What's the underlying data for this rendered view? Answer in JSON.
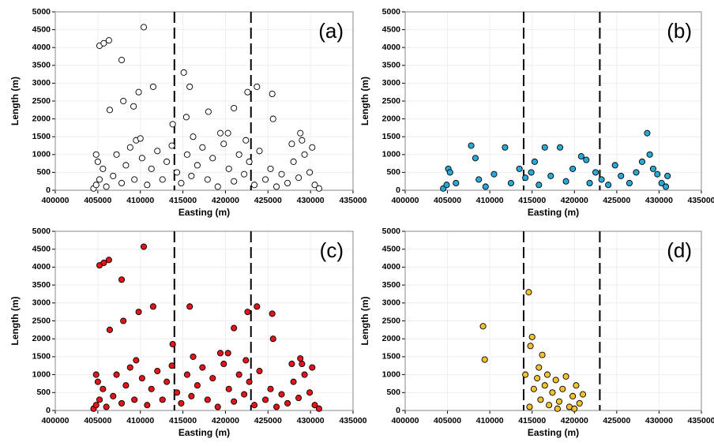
{
  "chart_data": [
    {
      "type": "scatter",
      "panel_label": "(a)",
      "xlabel": "Easting (m)",
      "ylabel": "Length (m)",
      "color": "#ffffff",
      "grid": true,
      "xlim": [
        400000,
        435000
      ],
      "ylim": [
        0,
        5000
      ],
      "xticks": [
        400000,
        405000,
        410000,
        415000,
        420000,
        425000,
        430000,
        435000
      ],
      "yticks": [
        0,
        500,
        1000,
        1500,
        2000,
        2500,
        3000,
        3500,
        4000,
        4500,
        5000
      ],
      "vlines": [
        414000,
        423000
      ],
      "x": [
        405200,
        405700,
        406300,
        410400,
        407800,
        415100,
        411500,
        415800,
        423700,
        422600,
        425500,
        406400,
        408000,
        409200,
        409800,
        418000,
        421000,
        425600,
        415400,
        413800,
        404800,
        409500,
        410000,
        416200,
        419400,
        420300,
        422400,
        428800,
        429000,
        427800,
        404500,
        404800,
        405200,
        405600,
        405000,
        406000,
        406800,
        407200,
        407800,
        408300,
        408800,
        409300,
        410200,
        410800,
        411300,
        412000,
        412600,
        413100,
        413700,
        414300,
        414800,
        415500,
        416000,
        416700,
        417300,
        417900,
        418500,
        419100,
        419800,
        420400,
        421000,
        421600,
        422200,
        422800,
        423400,
        424000,
        424700,
        425300,
        426000,
        426600,
        427300,
        428000,
        428600,
        429300,
        429900,
        430500,
        431000,
        430200
      ],
      "y": [
        4050,
        4120,
        4200,
        4570,
        3650,
        3300,
        2900,
        2900,
        2900,
        2750,
        2700,
        2250,
        2500,
        2350,
        2750,
        2200,
        2300,
        2000,
        2050,
        1850,
        1000,
        1400,
        1450,
        1500,
        1600,
        1600,
        1400,
        1600,
        1400,
        1300,
        50,
        150,
        300,
        600,
        800,
        100,
        400,
        1000,
        200,
        700,
        1200,
        300,
        900,
        150,
        600,
        1100,
        300,
        800,
        1250,
        500,
        200,
        1000,
        400,
        700,
        1200,
        300,
        900,
        100,
        1300,
        600,
        250,
        1000,
        450,
        800,
        150,
        1100,
        300,
        600,
        100,
        450,
        200,
        800,
        350,
        1000,
        500,
        150,
        50,
        1200
      ]
    },
    {
      "type": "scatter",
      "panel_label": "(b)",
      "xlabel": "Easting (m)",
      "ylabel": "Length (m)",
      "color": "#29a9d6",
      "grid": true,
      "xlim": [
        400000,
        435000
      ],
      "ylim": [
        0,
        5000
      ],
      "xticks": [
        400000,
        405000,
        410000,
        415000,
        420000,
        425000,
        430000,
        435000
      ],
      "yticks": [
        0,
        500,
        1000,
        1500,
        2000,
        2500,
        3000,
        3500,
        4000,
        4500,
        5000
      ],
      "vlines": [
        414000,
        423000
      ],
      "x": [
        404500,
        404900,
        405100,
        405300,
        406000,
        407800,
        408300,
        408700,
        409500,
        410500,
        411800,
        412500,
        413500,
        414200,
        414900,
        415300,
        415800,
        416500,
        417200,
        418300,
        419000,
        419800,
        420800,
        421400,
        421800,
        422500,
        423200,
        424000,
        424800,
        425500,
        426500,
        427300,
        428000,
        428600,
        428900,
        429300,
        429800,
        430300,
        430800,
        431000
      ],
      "y": [
        50,
        150,
        600,
        500,
        200,
        1250,
        900,
        300,
        100,
        450,
        1200,
        200,
        600,
        350,
        500,
        800,
        150,
        1200,
        400,
        1200,
        250,
        600,
        950,
        850,
        200,
        500,
        300,
        150,
        700,
        400,
        200,
        500,
        800,
        1600,
        1000,
        600,
        450,
        200,
        100,
        400
      ]
    },
    {
      "type": "scatter",
      "panel_label": "(c)",
      "xlabel": "Easting (m)",
      "ylabel": "Length (m)",
      "color": "#e3151a",
      "grid": true,
      "xlim": [
        400000,
        435000
      ],
      "ylim": [
        0,
        5000
      ],
      "xticks": [
        400000,
        405000,
        410000,
        415000,
        420000,
        425000,
        430000,
        435000
      ],
      "yticks": [
        0,
        500,
        1000,
        1500,
        2000,
        2500,
        3000,
        3500,
        4000,
        4500,
        5000
      ],
      "vlines": [
        414000,
        423000
      ],
      "x": [
        405200,
        405700,
        406300,
        410400,
        407800,
        411500,
        415800,
        423700,
        422600,
        425500,
        406400,
        408000,
        409800,
        421000,
        425600,
        413800,
        404800,
        409500,
        416200,
        419400,
        420300,
        422400,
        428800,
        429000,
        427800,
        404500,
        404800,
        405200,
        405600,
        405000,
        406000,
        406800,
        407200,
        407800,
        408300,
        408800,
        409300,
        410200,
        410800,
        411300,
        412000,
        412600,
        413100,
        413700,
        414300,
        414800,
        415500,
        416000,
        416700,
        417300,
        417900,
        418500,
        419100,
        419800,
        420400,
        421000,
        421600,
        422200,
        422800,
        423400,
        424000,
        424700,
        425300,
        426000,
        426600,
        427300,
        428000,
        428600,
        429300,
        429900,
        430500,
        431000,
        430200
      ],
      "y": [
        4050,
        4120,
        4200,
        4570,
        3650,
        2900,
        2900,
        2900,
        2750,
        2700,
        2250,
        2500,
        2750,
        2300,
        2000,
        1850,
        1000,
        1400,
        1500,
        1600,
        1600,
        1400,
        1450,
        1300,
        1300,
        50,
        150,
        300,
        600,
        800,
        100,
        400,
        1000,
        200,
        700,
        1200,
        300,
        900,
        150,
        600,
        1100,
        300,
        800,
        1250,
        500,
        200,
        1000,
        400,
        700,
        1200,
        300,
        900,
        100,
        1300,
        600,
        250,
        1000,
        450,
        800,
        150,
        1100,
        300,
        600,
        100,
        450,
        200,
        800,
        350,
        1000,
        500,
        150,
        50,
        1200
      ]
    },
    {
      "type": "scatter",
      "panel_label": "(d)",
      "xlabel": "Easting (m)",
      "ylabel": "Length (m)",
      "color": "#f2c12e",
      "grid": true,
      "xlim": [
        400000,
        435000
      ],
      "ylim": [
        0,
        5000
      ],
      "xticks": [
        400000,
        405000,
        410000,
        415000,
        420000,
        425000,
        430000,
        435000
      ],
      "yticks": [
        0,
        500,
        1000,
        1500,
        2000,
        2500,
        3000,
        3500,
        4000,
        4500,
        5000
      ],
      "vlines": [
        414000,
        423000
      ],
      "x": [
        409200,
        409400,
        414600,
        415000,
        414800,
        416200,
        414200,
        415200,
        415600,
        416000,
        416500,
        417000,
        417400,
        417800,
        418200,
        418600,
        419000,
        419400,
        419800,
        420200,
        420600,
        421000,
        415800,
        416800,
        414700,
        418000,
        420000
      ],
      "y": [
        2350,
        1420,
        3300,
        2050,
        1800,
        1550,
        1000,
        600,
        900,
        300,
        700,
        150,
        500,
        850,
        250,
        600,
        950,
        100,
        400,
        700,
        200,
        450,
        1200,
        1000,
        100,
        50,
        50
      ]
    }
  ]
}
